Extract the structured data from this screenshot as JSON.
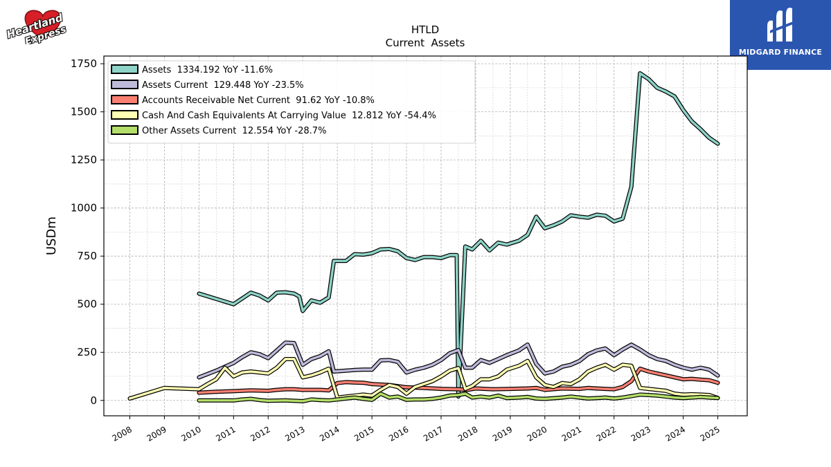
{
  "branding": {
    "left_logo_text": [
      "Heartland",
      "Express"
    ],
    "right_logo_text": "MIDGARD FINANCE",
    "right_logo_color": "#2a56b0"
  },
  "chart_data": {
    "type": "line",
    "title": "HTLD",
    "subtitle": "Current  Assets",
    "ylabel": "USDm",
    "xlabel": "",
    "xlim": [
      2007.25,
      2025.85
    ],
    "ylim": [
      -80,
      1790
    ],
    "xticks": [
      "2008",
      "2009",
      "2010",
      "2011",
      "2012",
      "2013",
      "2014",
      "2015",
      "2016",
      "2017",
      "2018",
      "2019",
      "2020",
      "2021",
      "2022",
      "2023",
      "2024",
      "2025"
    ],
    "yticks": [
      0,
      250,
      500,
      750,
      1000,
      1250,
      1500,
      1750
    ],
    "grid": true,
    "legend_position": "top-left",
    "series": [
      {
        "name": "Assets",
        "legend_label": "Assets  1334.192 YoY -11.6%",
        "color": "#8dd3c7",
        "points": [
          [
            2010.0,
            555
          ],
          [
            2011.0,
            500
          ],
          [
            2011.25,
            530
          ],
          [
            2011.5,
            560
          ],
          [
            2011.75,
            545
          ],
          [
            2012.0,
            520
          ],
          [
            2012.25,
            560
          ],
          [
            2012.5,
            562
          ],
          [
            2012.75,
            555
          ],
          [
            2012.9,
            540
          ],
          [
            2013.0,
            465
          ],
          [
            2013.25,
            520
          ],
          [
            2013.5,
            508
          ],
          [
            2013.75,
            535
          ],
          [
            2013.9,
            725
          ],
          [
            2014.25,
            725
          ],
          [
            2014.5,
            760
          ],
          [
            2014.75,
            758
          ],
          [
            2015.0,
            765
          ],
          [
            2015.25,
            785
          ],
          [
            2015.5,
            787
          ],
          [
            2015.75,
            775
          ],
          [
            2016.0,
            740
          ],
          [
            2016.25,
            730
          ],
          [
            2016.5,
            745
          ],
          [
            2016.75,
            745
          ],
          [
            2017.0,
            740
          ],
          [
            2017.25,
            755
          ],
          [
            2017.45,
            755
          ],
          [
            2017.5,
            20
          ],
          [
            2017.7,
            800
          ],
          [
            2017.9,
            785
          ],
          [
            2018.15,
            830
          ],
          [
            2018.4,
            780
          ],
          [
            2018.65,
            820
          ],
          [
            2018.9,
            810
          ],
          [
            2019.25,
            830
          ],
          [
            2019.5,
            860
          ],
          [
            2019.75,
            955
          ],
          [
            2020.0,
            895
          ],
          [
            2020.25,
            910
          ],
          [
            2020.5,
            930
          ],
          [
            2020.75,
            962
          ],
          [
            2021.0,
            955
          ],
          [
            2021.25,
            950
          ],
          [
            2021.5,
            965
          ],
          [
            2021.75,
            960
          ],
          [
            2022.0,
            930
          ],
          [
            2022.25,
            945
          ],
          [
            2022.5,
            1110
          ],
          [
            2022.75,
            1700
          ],
          [
            2023.0,
            1670
          ],
          [
            2023.25,
            1625
          ],
          [
            2023.5,
            1605
          ],
          [
            2023.75,
            1580
          ],
          [
            2024.0,
            1510
          ],
          [
            2024.25,
            1450
          ],
          [
            2024.5,
            1410
          ],
          [
            2024.75,
            1365
          ],
          [
            2025.0,
            1334.192
          ]
        ]
      },
      {
        "name": "Assets Current",
        "legend_label": "Assets Current  129.448 YoY -23.5%",
        "color": "#bebada",
        "points": [
          [
            2010.0,
            120
          ],
          [
            2010.5,
            155
          ],
          [
            2011.0,
            195
          ],
          [
            2011.25,
            225
          ],
          [
            2011.5,
            250
          ],
          [
            2011.75,
            240
          ],
          [
            2012.0,
            220
          ],
          [
            2012.25,
            260
          ],
          [
            2012.5,
            300
          ],
          [
            2012.75,
            298
          ],
          [
            2013.0,
            185
          ],
          [
            2013.25,
            215
          ],
          [
            2013.5,
            230
          ],
          [
            2013.75,
            255
          ],
          [
            2013.9,
            150
          ],
          [
            2014.25,
            155
          ],
          [
            2014.5,
            158
          ],
          [
            2014.75,
            160
          ],
          [
            2015.0,
            160
          ],
          [
            2015.25,
            208
          ],
          [
            2015.5,
            210
          ],
          [
            2015.75,
            200
          ],
          [
            2016.0,
            145
          ],
          [
            2016.25,
            160
          ],
          [
            2016.5,
            170
          ],
          [
            2016.75,
            185
          ],
          [
            2017.0,
            210
          ],
          [
            2017.25,
            245
          ],
          [
            2017.5,
            262
          ],
          [
            2017.7,
            170
          ],
          [
            2017.9,
            170
          ],
          [
            2018.15,
            210
          ],
          [
            2018.4,
            195
          ],
          [
            2018.65,
            215
          ],
          [
            2018.9,
            235
          ],
          [
            2019.25,
            260
          ],
          [
            2019.5,
            290
          ],
          [
            2019.75,
            190
          ],
          [
            2020.0,
            140
          ],
          [
            2020.25,
            150
          ],
          [
            2020.5,
            175
          ],
          [
            2020.75,
            185
          ],
          [
            2021.0,
            205
          ],
          [
            2021.25,
            240
          ],
          [
            2021.5,
            260
          ],
          [
            2021.75,
            270
          ],
          [
            2022.0,
            235
          ],
          [
            2022.25,
            265
          ],
          [
            2022.5,
            290
          ],
          [
            2022.75,
            265
          ],
          [
            2023.0,
            235
          ],
          [
            2023.25,
            215
          ],
          [
            2023.5,
            205
          ],
          [
            2023.75,
            185
          ],
          [
            2024.0,
            170
          ],
          [
            2024.25,
            160
          ],
          [
            2024.5,
            170
          ],
          [
            2024.75,
            160
          ],
          [
            2025.0,
            129.448
          ]
        ]
      },
      {
        "name": "Accounts Receivable Net Current",
        "legend_label": "Accounts Receivable Net Current  91.62 YoY -10.8%",
        "color": "#fb8072",
        "points": [
          [
            2010.0,
            40
          ],
          [
            2010.5,
            45
          ],
          [
            2011.0,
            48
          ],
          [
            2011.5,
            52
          ],
          [
            2012.0,
            50
          ],
          [
            2012.25,
            55
          ],
          [
            2012.5,
            58
          ],
          [
            2012.75,
            58
          ],
          [
            2013.0,
            55
          ],
          [
            2013.5,
            55
          ],
          [
            2013.75,
            52
          ],
          [
            2014.0,
            90
          ],
          [
            2014.25,
            95
          ],
          [
            2014.5,
            93
          ],
          [
            2014.75,
            92
          ],
          [
            2015.0,
            85
          ],
          [
            2015.5,
            80
          ],
          [
            2016.0,
            68
          ],
          [
            2016.5,
            65
          ],
          [
            2017.0,
            60
          ],
          [
            2017.5,
            58
          ],
          [
            2017.75,
            55
          ],
          [
            2018.0,
            62
          ],
          [
            2018.5,
            58
          ],
          [
            2019.0,
            60
          ],
          [
            2019.5,
            62
          ],
          [
            2019.75,
            65
          ],
          [
            2020.0,
            55
          ],
          [
            2020.5,
            62
          ],
          [
            2021.0,
            60
          ],
          [
            2021.25,
            65
          ],
          [
            2021.5,
            62
          ],
          [
            2021.75,
            60
          ],
          [
            2022.0,
            58
          ],
          [
            2022.25,
            70
          ],
          [
            2022.5,
            100
          ],
          [
            2022.75,
            165
          ],
          [
            2023.0,
            150
          ],
          [
            2023.25,
            140
          ],
          [
            2023.5,
            130
          ],
          [
            2023.75,
            120
          ],
          [
            2024.0,
            110
          ],
          [
            2024.25,
            112
          ],
          [
            2024.5,
            108
          ],
          [
            2024.75,
            105
          ],
          [
            2025.0,
            91.62
          ]
        ]
      },
      {
        "name": "Cash And Cash Equivalents At Carrying Value",
        "legend_label": "Cash And Cash Equivalents At Carrying Value  12.812 YoY -54.4%",
        "color": "#ffffb3",
        "points": [
          [
            2008.0,
            10
          ],
          [
            2009.0,
            65
          ],
          [
            2010.0,
            58
          ],
          [
            2010.25,
            85
          ],
          [
            2010.5,
            110
          ],
          [
            2010.75,
            170
          ],
          [
            2011.0,
            125
          ],
          [
            2011.25,
            145
          ],
          [
            2011.5,
            150
          ],
          [
            2011.75,
            145
          ],
          [
            2012.0,
            140
          ],
          [
            2012.25,
            170
          ],
          [
            2012.5,
            215
          ],
          [
            2012.75,
            215
          ],
          [
            2013.0,
            120
          ],
          [
            2013.25,
            130
          ],
          [
            2013.5,
            145
          ],
          [
            2013.75,
            165
          ],
          [
            2014.0,
            15
          ],
          [
            2014.25,
            20
          ],
          [
            2014.5,
            25
          ],
          [
            2014.75,
            30
          ],
          [
            2015.0,
            25
          ],
          [
            2015.25,
            55
          ],
          [
            2015.5,
            80
          ],
          [
            2015.75,
            70
          ],
          [
            2016.0,
            35
          ],
          [
            2016.25,
            70
          ],
          [
            2016.5,
            85
          ],
          [
            2016.75,
            100
          ],
          [
            2017.0,
            125
          ],
          [
            2017.25,
            155
          ],
          [
            2017.5,
            168
          ],
          [
            2017.7,
            60
          ],
          [
            2017.9,
            75
          ],
          [
            2018.15,
            110
          ],
          [
            2018.4,
            110
          ],
          [
            2018.65,
            125
          ],
          [
            2018.9,
            160
          ],
          [
            2019.25,
            180
          ],
          [
            2019.5,
            205
          ],
          [
            2019.75,
            120
          ],
          [
            2020.0,
            80
          ],
          [
            2020.25,
            70
          ],
          [
            2020.5,
            90
          ],
          [
            2020.75,
            85
          ],
          [
            2021.0,
            110
          ],
          [
            2021.25,
            150
          ],
          [
            2021.5,
            170
          ],
          [
            2021.75,
            185
          ],
          [
            2022.0,
            160
          ],
          [
            2022.25,
            185
          ],
          [
            2022.5,
            180
          ],
          [
            2022.75,
            65
          ],
          [
            2023.0,
            60
          ],
          [
            2023.25,
            55
          ],
          [
            2023.5,
            50
          ],
          [
            2023.75,
            35
          ],
          [
            2024.0,
            30
          ],
          [
            2024.25,
            32
          ],
          [
            2024.5,
            30
          ],
          [
            2024.75,
            28
          ],
          [
            2025.0,
            12.812
          ]
        ]
      },
      {
        "name": "Other Assets Current",
        "legend_label": "Other Assets Current  12.554 YoY -28.7%",
        "color": "#b3de69",
        "points": [
          [
            2010.0,
            0
          ],
          [
            2010.5,
            0
          ],
          [
            2011.0,
            0
          ],
          [
            2011.25,
            5
          ],
          [
            2011.5,
            8
          ],
          [
            2011.75,
            2
          ],
          [
            2012.0,
            -2
          ],
          [
            2012.5,
            0
          ],
          [
            2013.0,
            -4
          ],
          [
            2013.25,
            5
          ],
          [
            2013.5,
            2
          ],
          [
            2013.75,
            0
          ],
          [
            2014.0,
            5
          ],
          [
            2014.25,
            10
          ],
          [
            2014.5,
            15
          ],
          [
            2014.75,
            8
          ],
          [
            2015.0,
            3
          ],
          [
            2015.25,
            35
          ],
          [
            2015.5,
            15
          ],
          [
            2015.75,
            20
          ],
          [
            2016.0,
            3
          ],
          [
            2016.25,
            5
          ],
          [
            2016.5,
            5
          ],
          [
            2016.75,
            8
          ],
          [
            2017.0,
            15
          ],
          [
            2017.25,
            25
          ],
          [
            2017.5,
            28
          ],
          [
            2017.7,
            35
          ],
          [
            2017.9,
            15
          ],
          [
            2018.15,
            20
          ],
          [
            2018.4,
            15
          ],
          [
            2018.65,
            25
          ],
          [
            2018.9,
            12
          ],
          [
            2019.25,
            15
          ],
          [
            2019.5,
            18
          ],
          [
            2019.75,
            10
          ],
          [
            2020.0,
            8
          ],
          [
            2020.5,
            15
          ],
          [
            2020.75,
            20
          ],
          [
            2021.0,
            15
          ],
          [
            2021.25,
            10
          ],
          [
            2021.5,
            12
          ],
          [
            2021.75,
            15
          ],
          [
            2022.0,
            10
          ],
          [
            2022.25,
            15
          ],
          [
            2022.5,
            22
          ],
          [
            2022.75,
            30
          ],
          [
            2023.0,
            28
          ],
          [
            2023.25,
            25
          ],
          [
            2023.5,
            20
          ],
          [
            2023.75,
            15
          ],
          [
            2024.0,
            12
          ],
          [
            2024.25,
            15
          ],
          [
            2024.5,
            18
          ],
          [
            2024.75,
            15
          ],
          [
            2025.0,
            12.554
          ]
        ]
      }
    ]
  }
}
